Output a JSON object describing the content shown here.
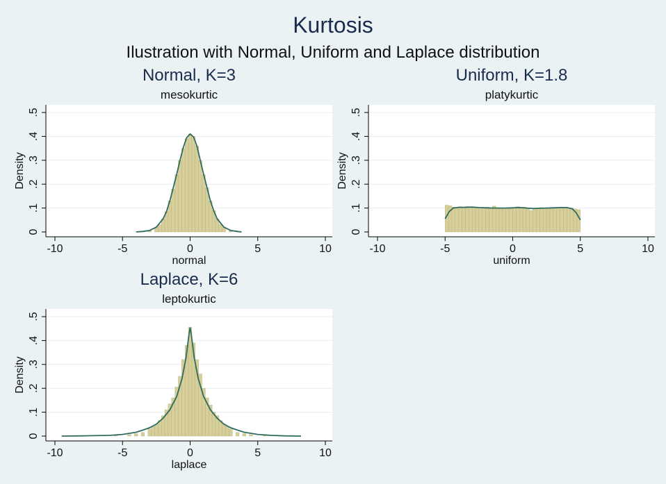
{
  "title": "Kurtosis",
  "subtitle": "Ilustration with Normal, Uniform and Laplace distribution",
  "colors": {
    "background": "#eaf2f3",
    "plot_bg": "#ffffff",
    "grid": "#e8eef2",
    "bar_fill": "#d6cf9b",
    "bar_stroke": "#b7ae74",
    "curve": "#2f6b5e",
    "title": "#1a2c4e",
    "text": "#111111"
  },
  "chart_data": [
    {
      "type": "bar",
      "title": "Normal, K=3",
      "subtitle": "mesokurtic",
      "xlabel": "normal",
      "ylabel": "Density",
      "xlim": [
        -10,
        10
      ],
      "ylim": [
        0,
        0.5
      ],
      "xticks": [
        "-10",
        "-5",
        "0",
        "5",
        "10"
      ],
      "yticks": [
        "0",
        ".1",
        ".2",
        ".3",
        ".4",
        ".5"
      ],
      "grid": true,
      "bins": {
        "x": [
          -3.5,
          -3.0,
          -2.5,
          -2.25,
          -2.0,
          -1.75,
          -1.5,
          -1.25,
          -1.0,
          -0.75,
          -0.5,
          -0.25,
          0.0,
          0.25,
          0.5,
          0.75,
          1.0,
          1.25,
          1.5,
          1.75,
          2.0,
          2.25,
          2.5,
          3.0,
          3.5
        ],
        "width": 0.25,
        "values": [
          0.002,
          0.005,
          0.018,
          0.03,
          0.055,
          0.085,
          0.13,
          0.18,
          0.24,
          0.3,
          0.35,
          0.39,
          0.41,
          0.4,
          0.36,
          0.3,
          0.24,
          0.185,
          0.13,
          0.09,
          0.055,
          0.032,
          0.018,
          0.005,
          0.002
        ]
      },
      "density": {
        "x": [
          -4,
          -3.5,
          -3,
          -2.5,
          -2,
          -1.75,
          -1.5,
          -1.25,
          -1,
          -0.75,
          -0.5,
          -0.25,
          0,
          0.25,
          0.5,
          0.75,
          1,
          1.25,
          1.5,
          1.75,
          2,
          2.5,
          3,
          3.5,
          3.8
        ],
        "y": [
          0.0,
          0.002,
          0.006,
          0.02,
          0.055,
          0.085,
          0.13,
          0.185,
          0.24,
          0.3,
          0.355,
          0.395,
          0.41,
          0.398,
          0.36,
          0.3,
          0.24,
          0.185,
          0.13,
          0.088,
          0.055,
          0.02,
          0.006,
          0.002,
          0.0
        ]
      }
    },
    {
      "type": "bar",
      "title": "Uniform, K=1.8",
      "subtitle": "platykurtic",
      "xlabel": "uniform",
      "ylabel": "Density",
      "xlim": [
        -10,
        10
      ],
      "ylim": [
        0,
        0.5
      ],
      "xticks": [
        "-10",
        "-5",
        "0",
        "5",
        "10"
      ],
      "yticks": [
        "0",
        ".1",
        ".2",
        ".3",
        ".4",
        ".5"
      ],
      "grid": true,
      "bins": {
        "x": [
          -4.875,
          -4.625,
          -4.375,
          -4.125,
          -3.875,
          -3.625,
          -3.375,
          -3.125,
          -2.875,
          -2.625,
          -2.375,
          -2.125,
          -1.875,
          -1.625,
          -1.375,
          -1.125,
          -0.875,
          -0.625,
          -0.375,
          -0.125,
          0.125,
          0.375,
          0.625,
          0.875,
          1.125,
          1.375,
          1.625,
          1.875,
          2.125,
          2.375,
          2.625,
          2.875,
          3.125,
          3.375,
          3.625,
          3.875,
          4.125,
          4.375,
          4.625,
          4.875
        ],
        "width": 0.25,
        "values": [
          0.112,
          0.11,
          0.104,
          0.102,
          0.106,
          0.104,
          0.107,
          0.104,
          0.101,
          0.102,
          0.097,
          0.1,
          0.104,
          0.102,
          0.108,
          0.1,
          0.101,
          0.098,
          0.1,
          0.097,
          0.103,
          0.106,
          0.101,
          0.104,
          0.099,
          0.09,
          0.099,
          0.097,
          0.102,
          0.1,
          0.098,
          0.102,
          0.1,
          0.101,
          0.104,
          0.103,
          0.101,
          0.1,
          0.096,
          0.093
        ]
      },
      "density": {
        "x": [
          -5,
          -4.7,
          -4.4,
          -4,
          -3.5,
          -3,
          -2.5,
          -2,
          -1.5,
          -1,
          -0.5,
          0,
          0.5,
          1,
          1.5,
          2,
          2.5,
          3,
          3.5,
          4,
          4.4,
          4.7,
          5
        ],
        "y": [
          0.055,
          0.085,
          0.1,
          0.103,
          0.103,
          0.104,
          0.102,
          0.101,
          0.1,
          0.1,
          0.1,
          0.101,
          0.102,
          0.1,
          0.098,
          0.099,
          0.1,
          0.101,
          0.102,
          0.102,
          0.097,
          0.08,
          0.05
        ]
      }
    },
    {
      "type": "bar",
      "title": "Laplace, K=6",
      "subtitle": "leptokurtic",
      "xlabel": "laplace",
      "ylabel": "Density",
      "xlim": [
        -10,
        10
      ],
      "ylim": [
        0,
        0.5
      ],
      "xticks": [
        "-10",
        "-5",
        "0",
        "5",
        "10"
      ],
      "yticks": [
        "0",
        ".1",
        ".2",
        ".3",
        ".4",
        ".5"
      ],
      "grid": true,
      "bins": {
        "x": [
          -5.5,
          -4.5,
          -4,
          -3.5,
          -3.0,
          -2.75,
          -2.5,
          -2.25,
          -2.0,
          -1.75,
          -1.5,
          -1.25,
          -1.0,
          -0.75,
          -0.5,
          -0.25,
          0.0,
          0.25,
          0.5,
          0.75,
          1.0,
          1.25,
          1.5,
          1.75,
          2.0,
          2.25,
          2.5,
          2.75,
          3.0,
          3.5,
          4.0,
          4.5,
          5.5
        ],
        "width": 0.25,
        "values": [
          0.003,
          0.006,
          0.01,
          0.015,
          0.03,
          0.04,
          0.05,
          0.065,
          0.085,
          0.11,
          0.135,
          0.16,
          0.205,
          0.25,
          0.32,
          0.38,
          0.455,
          0.39,
          0.32,
          0.26,
          0.2,
          0.16,
          0.13,
          0.1,
          0.085,
          0.065,
          0.05,
          0.04,
          0.03,
          0.015,
          0.01,
          0.006,
          0.003
        ]
      },
      "density": {
        "x": [
          -9.5,
          -8,
          -6,
          -5,
          -4,
          -3.5,
          -3,
          -2.5,
          -2,
          -1.5,
          -1,
          -0.6,
          -0.3,
          -0.1,
          0,
          0.1,
          0.3,
          0.6,
          1,
          1.5,
          2,
          2.5,
          3,
          3.5,
          4,
          5,
          6,
          7,
          8.2
        ],
        "y": [
          0.0,
          0.001,
          0.003,
          0.007,
          0.016,
          0.025,
          0.035,
          0.05,
          0.075,
          0.11,
          0.165,
          0.24,
          0.33,
          0.42,
          0.455,
          0.42,
          0.33,
          0.24,
          0.165,
          0.11,
          0.075,
          0.05,
          0.035,
          0.025,
          0.016,
          0.007,
          0.003,
          0.001,
          0.0
        ]
      }
    }
  ]
}
